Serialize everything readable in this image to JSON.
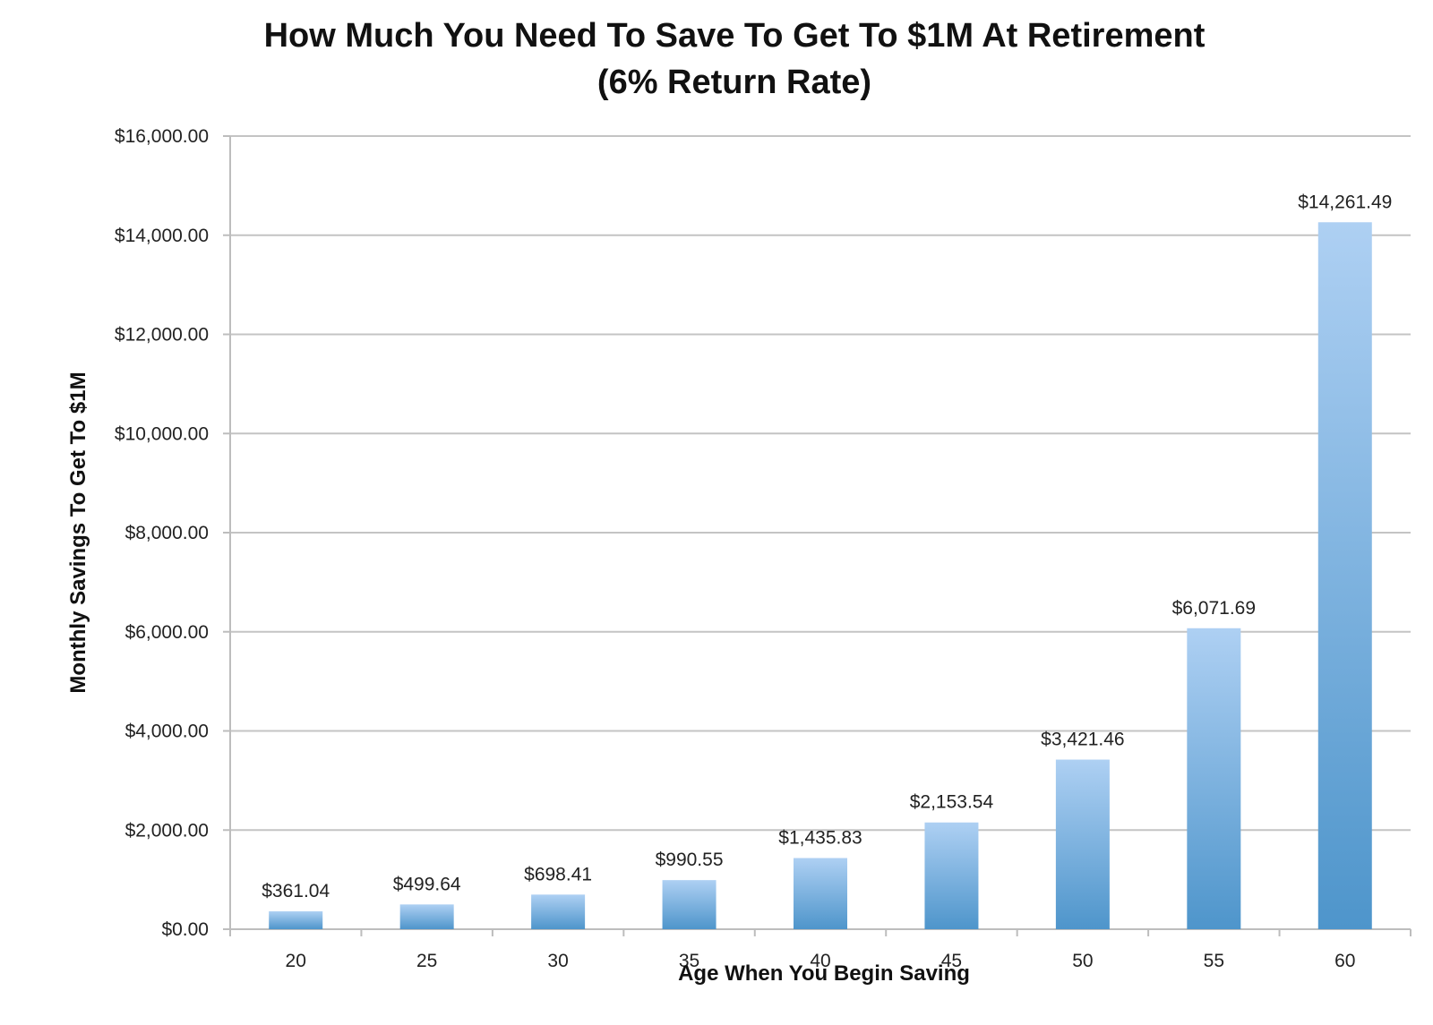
{
  "chart_data": {
    "type": "bar",
    "title": "How Much You Need To Save To Get To $1M At Retirement",
    "subtitle": "(6% Return Rate)",
    "xlabel": "Age When You Begin Saving",
    "ylabel": "Monthly Savings To Get To $1M",
    "categories": [
      "20",
      "25",
      "30",
      "35",
      "40",
      "45",
      "50",
      "55",
      "60"
    ],
    "values": [
      361.04,
      499.64,
      698.41,
      990.55,
      1435.83,
      2153.54,
      3421.46,
      6071.69,
      14261.49
    ],
    "value_labels": [
      "$361.04",
      "$499.64",
      "$698.41",
      "$990.55",
      "$1,435.83",
      "$2,153.54",
      "$3,421.46",
      "$6,071.69",
      "$14,261.49"
    ],
    "ylim": [
      0,
      16000
    ],
    "yticks": [
      0,
      2000,
      4000,
      6000,
      8000,
      10000,
      12000,
      14000,
      16000
    ],
    "ytick_labels": [
      "$0.00",
      "$2,000.00",
      "$4,000.00",
      "$6,000.00",
      "$8,000.00",
      "$10,000.00",
      "$12,000.00",
      "$14,000.00",
      "$16,000.00"
    ],
    "grid": true,
    "legend": "none",
    "colors": {
      "bar_top": "#aed0f3",
      "bar_bottom": "#4e95cb",
      "gridline": "#c4c4c4",
      "axis": "#bdbdbd"
    }
  }
}
